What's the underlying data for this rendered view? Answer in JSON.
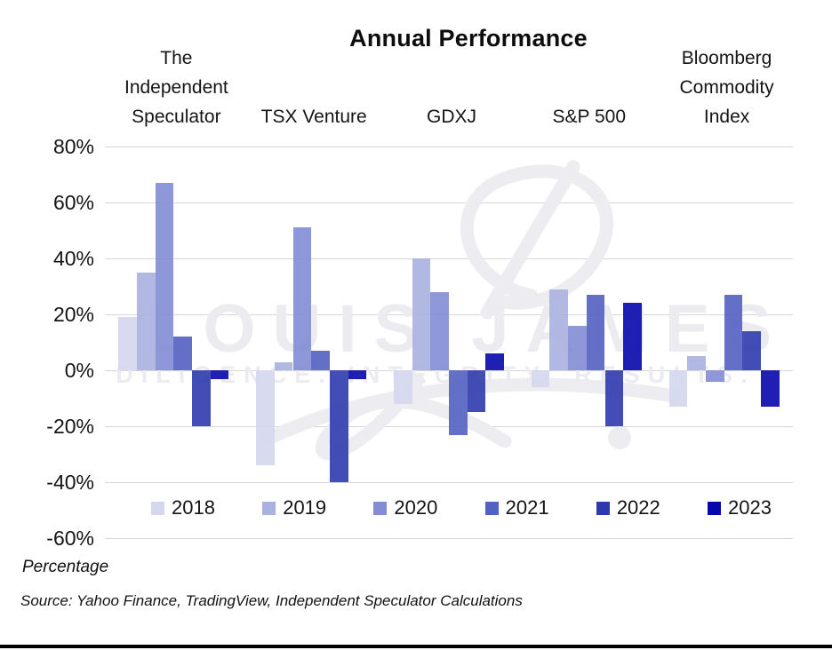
{
  "page": {
    "y_axis_title": "Percentage",
    "source_note": "Source: Yahoo Finance, TradingView, Independent Speculator Calculations",
    "watermark": {
      "primary": "LOUIS JAMES",
      "secondary": "DILIGENCE. INTEGRITY. RESULTS."
    }
  },
  "chart_data": {
    "type": "bar",
    "title": "Annual Performance",
    "categories": [
      "The\nIndependent\nSpeculator",
      "TSX Venture",
      "GDXJ",
      "S&P 500",
      "Bloomberg\nCommodity\nIndex"
    ],
    "series": [
      {
        "name": "2018",
        "color": "#d4d7ee",
        "values": [
          19,
          -34,
          -12,
          -6,
          -13
        ]
      },
      {
        "name": "2019",
        "color": "#a9b1e0",
        "values": [
          35,
          3,
          40,
          29,
          5
        ]
      },
      {
        "name": "2020",
        "color": "#828dd4",
        "values": [
          67,
          51,
          28,
          16,
          -4
        ]
      },
      {
        "name": "2021",
        "color": "#5361c2",
        "values": [
          12,
          7,
          -23,
          27,
          27
        ]
      },
      {
        "name": "2022",
        "color": "#2d3aae",
        "values": [
          -20,
          -40,
          -15,
          -20,
          14
        ]
      },
      {
        "name": "2023",
        "color": "#0708ab",
        "values": [
          -3,
          -3,
          6,
          24,
          -13
        ]
      }
    ],
    "ylabel": "Percentage",
    "yticks": [
      80,
      60,
      40,
      20,
      0,
      -20,
      -40,
      -60
    ],
    "ylim": [
      -60,
      80
    ],
    "unit": "%",
    "grid": "horizontal",
    "legend_position": "bottom"
  }
}
